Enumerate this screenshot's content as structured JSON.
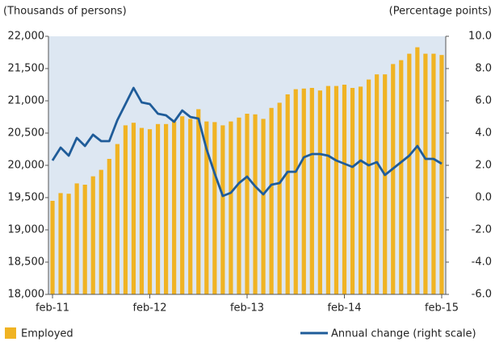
{
  "chart_data": {
    "type": "bar-line",
    "y_axis_label": "(Thousands of persons)",
    "y2_axis_label": "(Percentage points)",
    "categories": [
      "feb-11",
      null,
      null,
      null,
      null,
      null,
      null,
      null,
      null,
      null,
      null,
      null,
      "feb-12",
      null,
      null,
      null,
      null,
      null,
      null,
      null,
      null,
      null,
      null,
      null,
      "feb-13",
      null,
      null,
      null,
      null,
      null,
      null,
      null,
      null,
      null,
      null,
      null,
      "feb-14",
      null,
      null,
      null,
      null,
      null,
      null,
      null,
      null,
      null,
      null,
      null,
      "feb-15"
    ],
    "series": [
      {
        "name": "Employed",
        "kind": "bar",
        "color": "#f0b323",
        "values": [
          19450,
          19570,
          19560,
          19720,
          19700,
          19830,
          19930,
          20100,
          20330,
          20620,
          20660,
          20580,
          20560,
          20640,
          20640,
          20680,
          20760,
          20720,
          20870,
          20680,
          20670,
          20620,
          20680,
          20740,
          20800,
          20790,
          20720,
          20890,
          20970,
          21100,
          21180,
          21190,
          21200,
          21160,
          21230,
          21230,
          21250,
          21200,
          21220,
          21330,
          21410,
          21410,
          21570,
          21630,
          21730,
          21830,
          21730,
          21730,
          21710
        ]
      },
      {
        "name": "Annual change (right scale)",
        "kind": "line",
        "axis": "y2",
        "color": "#1f5c99",
        "values": [
          2.3,
          3.1,
          2.6,
          3.7,
          3.2,
          3.9,
          3.5,
          3.5,
          4.8,
          5.8,
          6.8,
          5.9,
          5.8,
          5.2,
          5.1,
          4.7,
          5.4,
          5.0,
          4.9,
          3.0,
          1.5,
          0.1,
          0.3,
          0.9,
          1.3,
          0.7,
          0.2,
          0.8,
          0.9,
          1.6,
          1.6,
          2.5,
          2.7,
          2.7,
          2.6,
          2.3,
          2.1,
          1.9,
          2.3,
          2.0,
          2.2,
          1.4,
          1.8,
          2.2,
          2.6,
          3.2,
          2.4,
          2.4,
          2.1
        ]
      }
    ],
    "ylim": [
      18000,
      22000
    ],
    "yticks": [
      {
        "value": 18000,
        "label": "18,000"
      },
      {
        "value": 18500,
        "label": "18,500"
      },
      {
        "value": 19000,
        "label": "19,000"
      },
      {
        "value": 19500,
        "label": "19,500"
      },
      {
        "value": 20000,
        "label": "20,000"
      },
      {
        "value": 20500,
        "label": "20,500"
      },
      {
        "value": 21000,
        "label": "21,000"
      },
      {
        "value": 21500,
        "label": "21,500"
      },
      {
        "value": 22000,
        "label": "22,000"
      }
    ],
    "y2lim": [
      -6,
      10
    ],
    "y2ticks": [
      {
        "value": -6,
        "label": "-6.0"
      },
      {
        "value": -4,
        "label": "-4.0"
      },
      {
        "value": -2,
        "label": "-2.0"
      },
      {
        "value": 0,
        "label": "0.0"
      },
      {
        "value": 2,
        "label": "2.0"
      },
      {
        "value": 4,
        "label": "4.0"
      },
      {
        "value": 6,
        "label": "6.0"
      },
      {
        "value": 8,
        "label": "8.0"
      },
      {
        "value": 10,
        "label": "10.0"
      }
    ],
    "plot_background": "#dde7f2"
  }
}
